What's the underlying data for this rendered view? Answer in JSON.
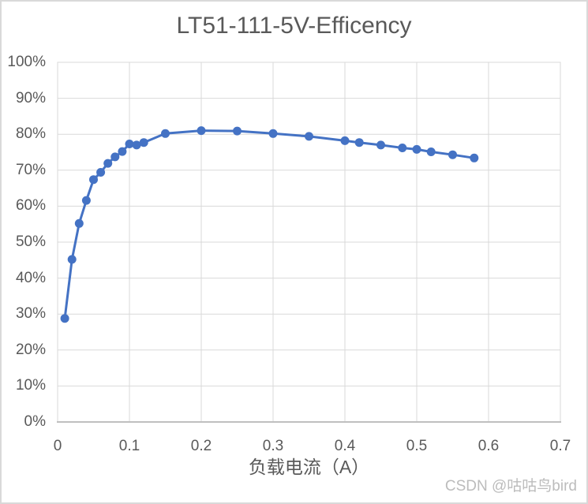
{
  "watermark": "CSDN @咕咕鸟bird",
  "colors": {
    "line": "#4472C4",
    "marker": "#4472C4",
    "grid": "#D9D9D9",
    "plot_border": "#D9D9D9",
    "axis_line": "#BFBFBF",
    "text": "#595959",
    "watermark": "#BCBCBC",
    "frame_border": "#D9D9D9",
    "background": "#FFFFFF"
  },
  "chart_data": {
    "type": "line",
    "title": "LT51-111-5V-Efficency",
    "xlabel": "负载电流（A）",
    "ylabel": "",
    "x": [
      0.01,
      0.02,
      0.03,
      0.04,
      0.05,
      0.06,
      0.07,
      0.08,
      0.09,
      0.1,
      0.11,
      0.12,
      0.15,
      0.2,
      0.25,
      0.3,
      0.35,
      0.4,
      0.42,
      0.45,
      0.48,
      0.5,
      0.52,
      0.55,
      0.58
    ],
    "y_percent": [
      28.8,
      45.2,
      55.2,
      61.6,
      67.4,
      69.4,
      71.9,
      73.7,
      75.2,
      77.3,
      77.0,
      77.7,
      80.2,
      81.0,
      80.9,
      80.2,
      79.4,
      78.2,
      77.7,
      77.0,
      76.2,
      75.8,
      75.1,
      74.3,
      73.4
    ],
    "xlim": [
      0,
      0.7
    ],
    "ylim": [
      0,
      100
    ],
    "x_ticks": [
      0,
      0.1,
      0.2,
      0.3,
      0.4,
      0.5,
      0.6,
      0.7
    ],
    "x_tick_labels": [
      "0",
      "0.1",
      "0.2",
      "0.3",
      "0.4",
      "0.5",
      "0.6",
      "0.7"
    ],
    "y_ticks": [
      0,
      10,
      20,
      30,
      40,
      50,
      60,
      70,
      80,
      90,
      100
    ],
    "y_tick_labels": [
      "0%",
      "10%",
      "20%",
      "30%",
      "40%",
      "50%",
      "60%",
      "70%",
      "80%",
      "90%",
      "100%"
    ],
    "grid": true,
    "legend": "none",
    "marker": "circle"
  }
}
